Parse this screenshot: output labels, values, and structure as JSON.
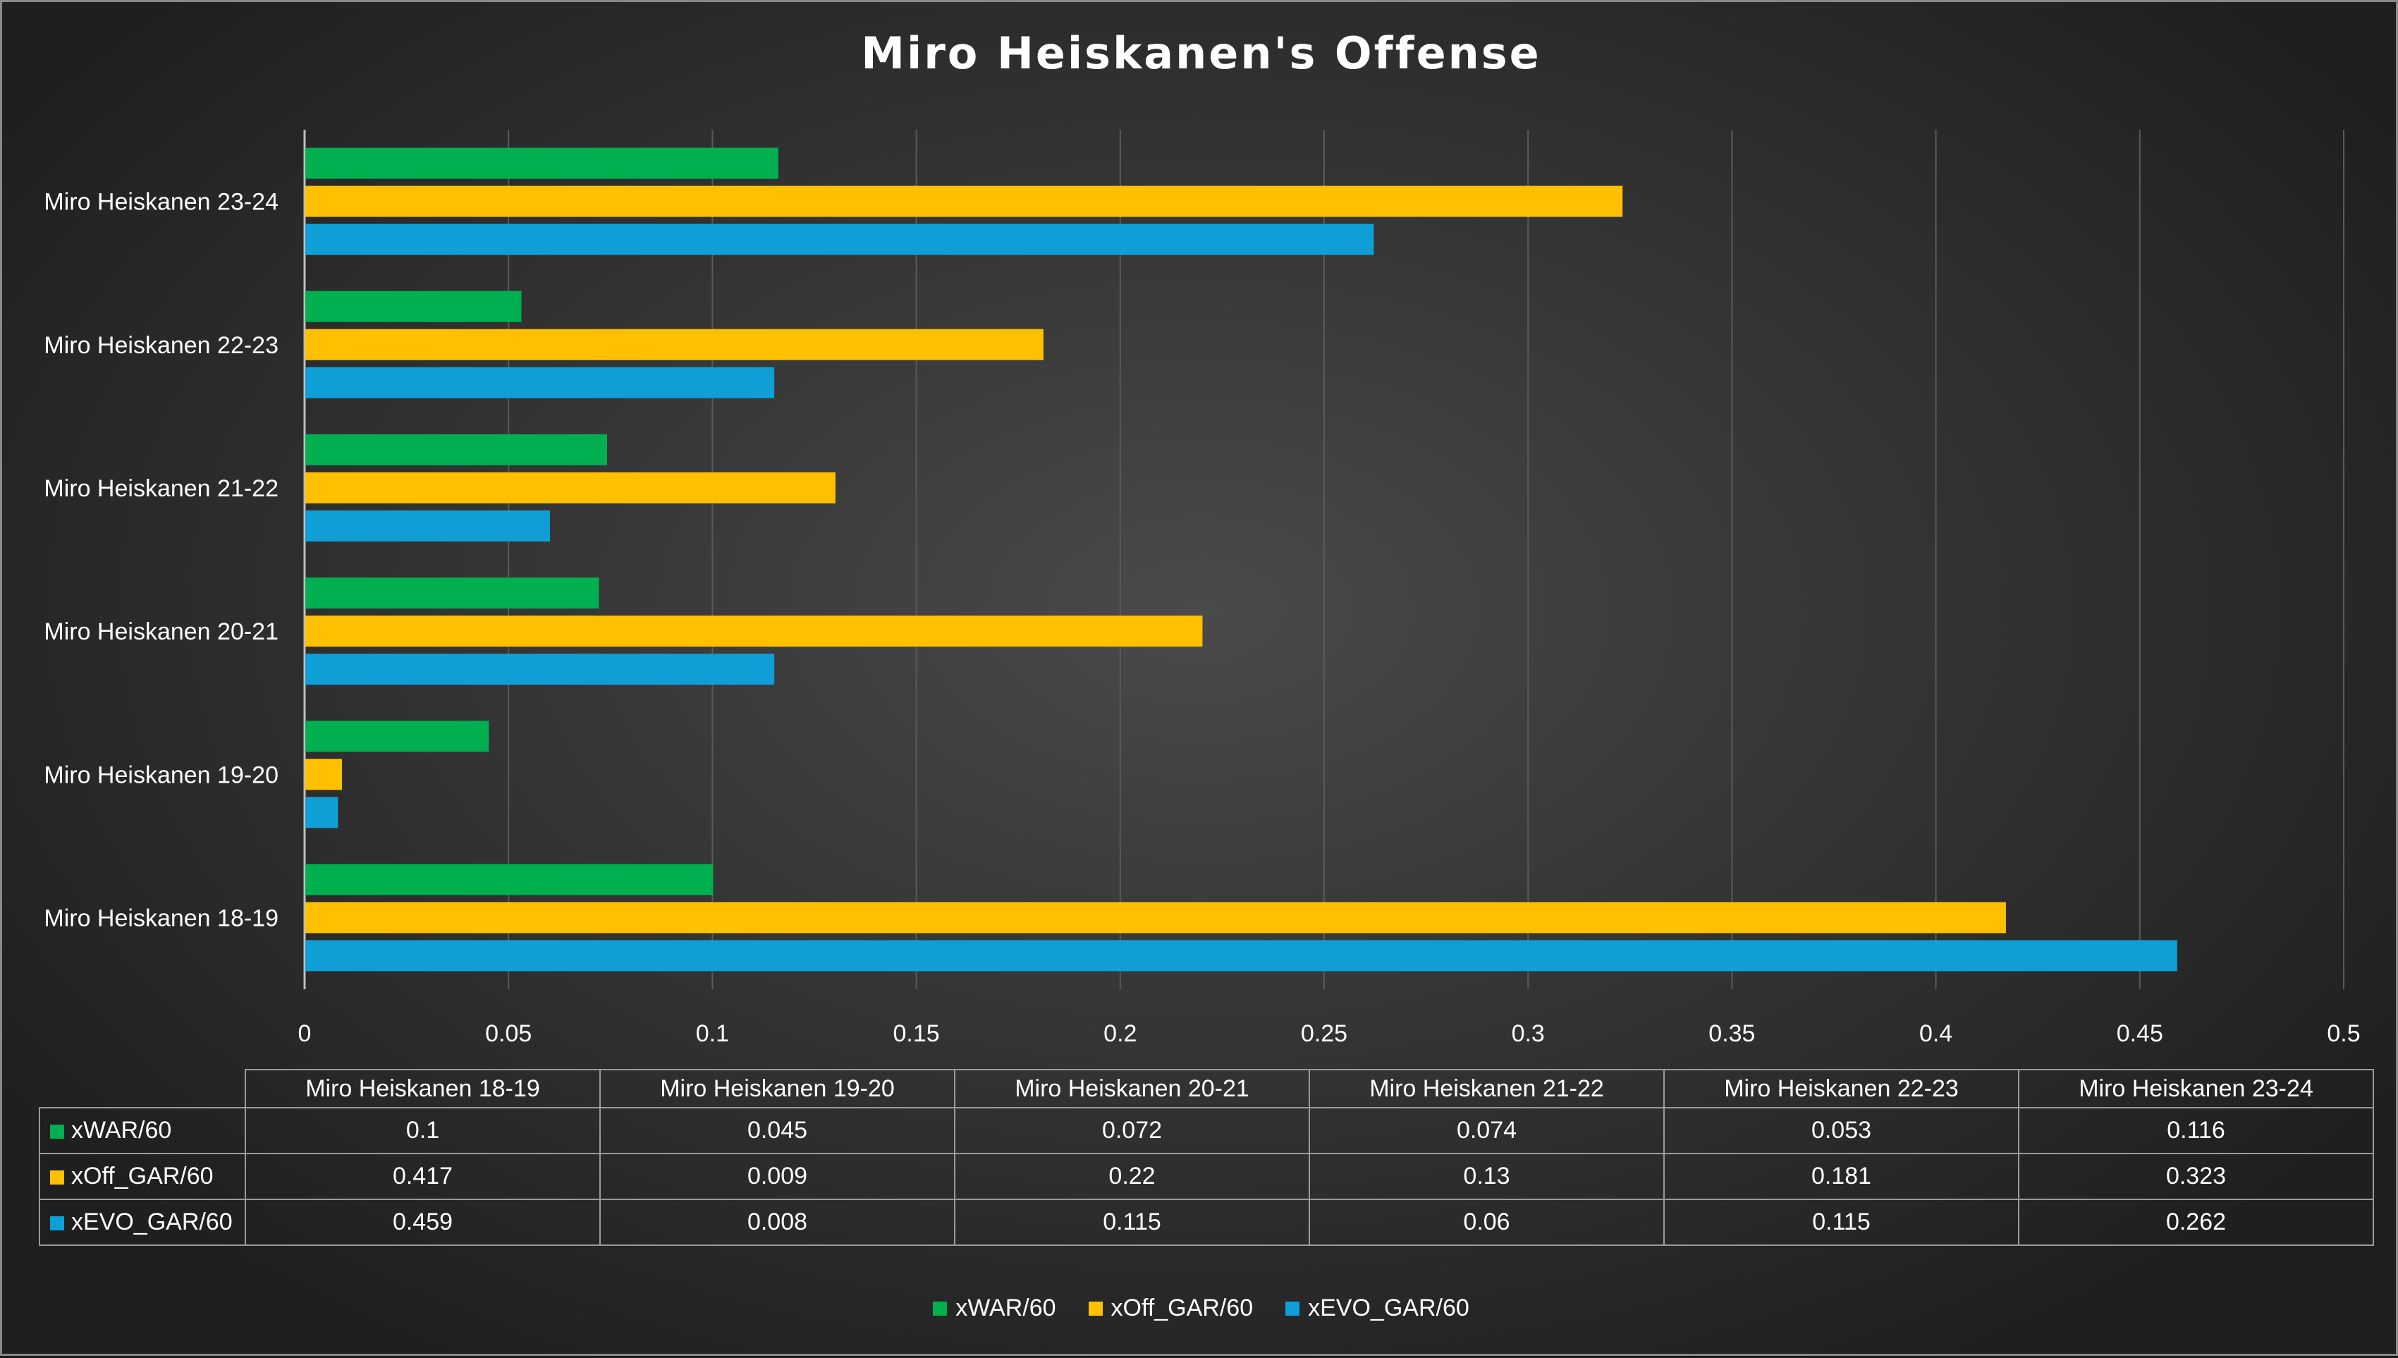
{
  "chart_data": {
    "type": "bar",
    "orientation": "horizontal",
    "title": "Miro Heiskanen's Offense",
    "categories": [
      "Miro Heiskanen 18-19",
      "Miro Heiskanen 19-20",
      "Miro Heiskanen 20-21",
      "Miro Heiskanen 21-22",
      "Miro Heiskanen 22-23",
      "Miro Heiskanen 23-24"
    ],
    "series": [
      {
        "name": "xWAR/60",
        "color": "#00b050",
        "values": [
          0.1,
          0.045,
          0.072,
          0.074,
          0.053,
          0.116
        ]
      },
      {
        "name": "xOff_GAR/60",
        "color": "#ffc000",
        "values": [
          0.417,
          0.009,
          0.22,
          0.13,
          0.181,
          0.323
        ]
      },
      {
        "name": "xEVO_GAR/60",
        "color": "#0f9ed5",
        "values": [
          0.459,
          0.008,
          0.115,
          0.06,
          0.115,
          0.262
        ]
      }
    ],
    "xlim": [
      0,
      0.5
    ],
    "xticks": [
      "0",
      "0.05",
      "0.1",
      "0.15",
      "0.2",
      "0.25",
      "0.3",
      "0.35",
      "0.4",
      "0.45",
      "0.5"
    ],
    "grid": true,
    "legend_position": "bottom",
    "data_table": {
      "rows": [
        {
          "label": "xWAR/60",
          "cells": [
            "0.1",
            "0.045",
            "0.072",
            "0.074",
            "0.053",
            "0.116"
          ]
        },
        {
          "label": "xOff_GAR/60",
          "cells": [
            "0.417",
            "0.009",
            "0.22",
            "0.13",
            "0.181",
            "0.323"
          ]
        },
        {
          "label": "xEVO_GAR/60",
          "cells": [
            "0.459",
            "0.008",
            "0.115",
            "0.06",
            "0.115",
            "0.262"
          ]
        }
      ]
    }
  },
  "colors": {
    "background": "#2e2e2e",
    "gridline": "#5a5a5a",
    "text": "#ffffff"
  }
}
